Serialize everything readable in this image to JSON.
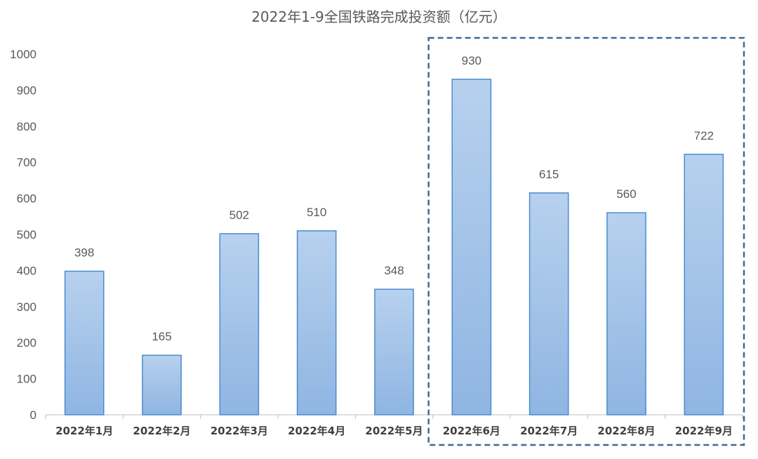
{
  "chart_data": {
    "type": "bar",
    "title": "2022年1-9全国铁路完成投资额（亿元）",
    "categories": [
      "2022年1月",
      "2022年2月",
      "2022年3月",
      "2022年4月",
      "2022年5月",
      "2022年6月",
      "2022年7月",
      "2022年8月",
      "2022年9月"
    ],
    "values": [
      398,
      165,
      502,
      510,
      348,
      930,
      615,
      560,
      722
    ],
    "xlabel": "",
    "ylabel": "",
    "ylim": [
      0,
      1000
    ],
    "yticks": [
      0,
      100,
      200,
      300,
      400,
      500,
      600,
      700,
      800,
      900,
      1000
    ],
    "grid": false,
    "legend": "none",
    "bar_color": "#9dbfe6",
    "bar_border_color": "#4a8bd0",
    "highlight": {
      "from_category": "2022年6月",
      "to_category": "2022年9月",
      "style": "dashed-box",
      "color": "#3d6a96"
    }
  }
}
